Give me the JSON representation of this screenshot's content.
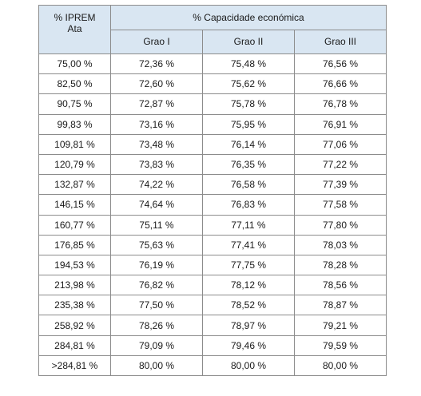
{
  "table": {
    "header": {
      "corner_line1": "% IPREM",
      "corner_line2": "Ata",
      "group_label": "% Capacidade económica",
      "sub_columns": [
        "Grao I",
        "Grao II",
        "Grao III"
      ]
    },
    "rows": [
      [
        "75,00 %",
        "72,36 %",
        "75,48 %",
        "76,56 %"
      ],
      [
        "82,50 %",
        "72,60 %",
        "75,62 %",
        "76,66 %"
      ],
      [
        "90,75 %",
        "72,87 %",
        "75,78 %",
        "76,78 %"
      ],
      [
        "99,83 %",
        "73,16 %",
        "75,95 %",
        "76,91 %"
      ],
      [
        "109,81 %",
        "73,48 %",
        "76,14 %",
        "77,06 %"
      ],
      [
        "120,79 %",
        "73,83 %",
        "76,35 %",
        "77,22 %"
      ],
      [
        "132,87 %",
        "74,22 %",
        "76,58 %",
        "77,39 %"
      ],
      [
        "146,15 %",
        "74,64 %",
        "76,83 %",
        "77,58 %"
      ],
      [
        "160,77 %",
        "75,11 %",
        "77,11 %",
        "77,80 %"
      ],
      [
        "176,85 %",
        "75,63 %",
        "77,41 %",
        "78,03 %"
      ],
      [
        "194,53 %",
        "76,19 %",
        "77,75 %",
        "78,28 %"
      ],
      [
        "213,98 %",
        "76,82 %",
        "78,12 %",
        "78,56 %"
      ],
      [
        "235,38 %",
        "77,50 %",
        "78,52 %",
        "78,87 %"
      ],
      [
        "258,92 %",
        "78,26 %",
        "78,97 %",
        "79,21 %"
      ],
      [
        "284,81 %",
        "79,09 %",
        "79,46 %",
        "79,59 %"
      ],
      [
        ">284,81 %",
        "80,00 %",
        "80,00 %",
        "80,00 %"
      ]
    ],
    "colors": {
      "header_background": "#d9e6f2",
      "border": "#8c8c8c"
    }
  }
}
